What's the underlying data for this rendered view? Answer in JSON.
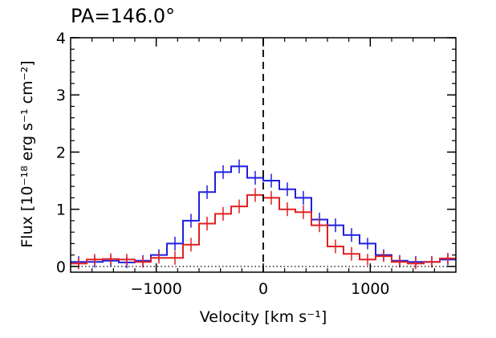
{
  "chart_data": {
    "type": "line",
    "title": "PA=146.0°",
    "xlabel": "Velocity [km s⁻¹]",
    "ylabel": "Flux [10⁻¹⁸ erg s⁻¹ cm⁻²]",
    "xlim": [
      -1800,
      1800
    ],
    "ylim": [
      -0.1,
      4
    ],
    "x_ticks": [
      -1000,
      0,
      1000
    ],
    "x_tick_labels": [
      "−1000",
      "0",
      "1000"
    ],
    "y_ticks": [
      0,
      1,
      2,
      3,
      4
    ],
    "y_tick_labels": [
      "0",
      "1",
      "2",
      "3",
      "4"
    ],
    "zero_line": 0,
    "center_line": 0,
    "grid": false,
    "series": [
      {
        "color": "#1f1fe0",
        "bin_edges": [
          -1800,
          -1650,
          -1500,
          -1350,
          -1200,
          -1050,
          -900,
          -750,
          -600,
          -450,
          -300,
          -150,
          0,
          150,
          300,
          450,
          600,
          750,
          900,
          1050,
          1200,
          1350,
          1500,
          1650,
          1800
        ],
        "values": [
          0.08,
          0.08,
          0.1,
          0.07,
          0.1,
          0.2,
          0.4,
          0.8,
          1.3,
          1.65,
          1.75,
          1.55,
          1.5,
          1.35,
          1.2,
          0.82,
          0.72,
          0.55,
          0.4,
          0.2,
          0.1,
          0.08,
          0.08,
          0.12
        ],
        "errors": [
          0.1,
          0.1,
          0.1,
          0.1,
          0.1,
          0.1,
          0.12,
          0.12,
          0.12,
          0.12,
          0.12,
          0.12,
          0.12,
          0.12,
          0.12,
          0.12,
          0.12,
          0.12,
          0.1,
          0.1,
          0.1,
          0.1,
          0.1,
          0.1
        ]
      },
      {
        "color": "#e02020",
        "bin_edges": [
          -1800,
          -1650,
          -1500,
          -1350,
          -1200,
          -1050,
          -900,
          -750,
          -600,
          -450,
          -300,
          -150,
          0,
          150,
          300,
          450,
          600,
          750,
          900,
          1050,
          1200,
          1350,
          1500,
          1650,
          1800
        ],
        "values": [
          0.05,
          0.12,
          0.13,
          0.12,
          0.08,
          0.15,
          0.15,
          0.38,
          0.75,
          0.92,
          1.05,
          1.25,
          1.2,
          1.0,
          0.95,
          0.72,
          0.35,
          0.22,
          0.12,
          0.18,
          0.08,
          0.05,
          0.08,
          0.14
        ],
        "errors": [
          0.1,
          0.1,
          0.1,
          0.1,
          0.1,
          0.1,
          0.12,
          0.12,
          0.12,
          0.12,
          0.12,
          0.12,
          0.12,
          0.12,
          0.12,
          0.12,
          0.12,
          0.12,
          0.1,
          0.1,
          0.1,
          0.1,
          0.1,
          0.1
        ]
      }
    ]
  }
}
